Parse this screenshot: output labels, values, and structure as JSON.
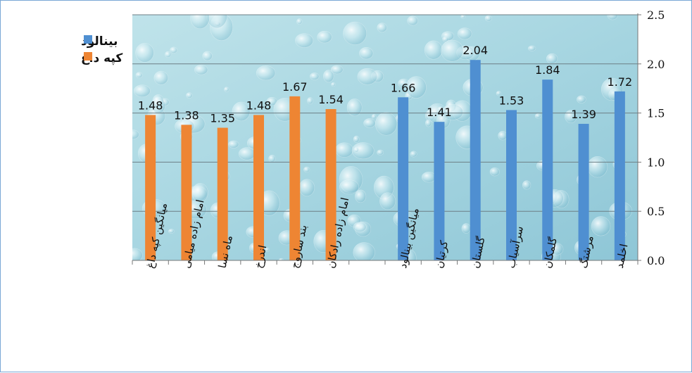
{
  "chart_data": {
    "type": "bar",
    "title": "",
    "xlabel": "",
    "ylabel": "",
    "ylim": [
      0,
      2.5
    ],
    "yticks": [
      "0.0",
      "0.5",
      "1.0",
      "1.5",
      "2.0",
      "2.5"
    ],
    "y_axis_side": "right",
    "legend_position": "top-left",
    "grid": true,
    "plot_background": "water-droplets texture",
    "series": [
      {
        "name": "کپه داغ",
        "color": "#ee8533",
        "categories": [
          "میانگین کپه داغ",
          "امام زاده میامی",
          "ماه نسا",
          "اندرخ",
          "بند ساروج",
          "امام زاده رادکان"
        ],
        "values": [
          1.48,
          1.38,
          1.35,
          1.48,
          1.67,
          1.54
        ],
        "labels": [
          "1.48",
          "1.38",
          "1.35",
          "1.48",
          "1.67",
          "1.54"
        ]
      },
      {
        "name": "بینالود",
        "color": "#4f8fd1",
        "categories": [
          "میانگین بینالود",
          "کرتیان",
          "گلستان",
          "سرآسیاب",
          "گلمکان",
          "مرشتگ",
          "اخلمد"
        ],
        "values": [
          1.66,
          1.41,
          2.04,
          1.53,
          1.84,
          1.39,
          1.72
        ],
        "labels": [
          "1.66",
          "1.41",
          "2.04",
          "1.53",
          "1.84",
          "1.39",
          "1.72"
        ]
      }
    ]
  }
}
